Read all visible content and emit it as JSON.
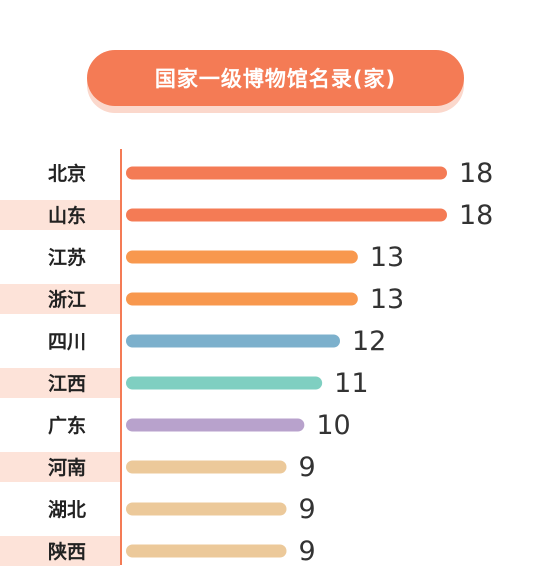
{
  "chart_data": {
    "type": "bar",
    "orientation": "horizontal",
    "title": "国家一级博物馆名录(家)",
    "categories": [
      "北京",
      "山东",
      "江苏",
      "浙江",
      "四川",
      "江西",
      "广东",
      "河南",
      "湖北",
      "陕西"
    ],
    "values": [
      18,
      18,
      13,
      13,
      12,
      11,
      10,
      9,
      9,
      9
    ],
    "bar_colors": [
      "#f47b55",
      "#f47b55",
      "#f8984e",
      "#f8984e",
      "#7cb0cc",
      "#7fcfc1",
      "#b8a2cc",
      "#ecc99a",
      "#ecc99a",
      "#ecc99a"
    ],
    "xlim": [
      0,
      18
    ],
    "grid": false,
    "legend": "none"
  },
  "colors": {
    "accent": "#f47b55",
    "title_shadow": "#fbd8cc",
    "stripe": "#fde3d9",
    "axis": "#f47b55"
  }
}
